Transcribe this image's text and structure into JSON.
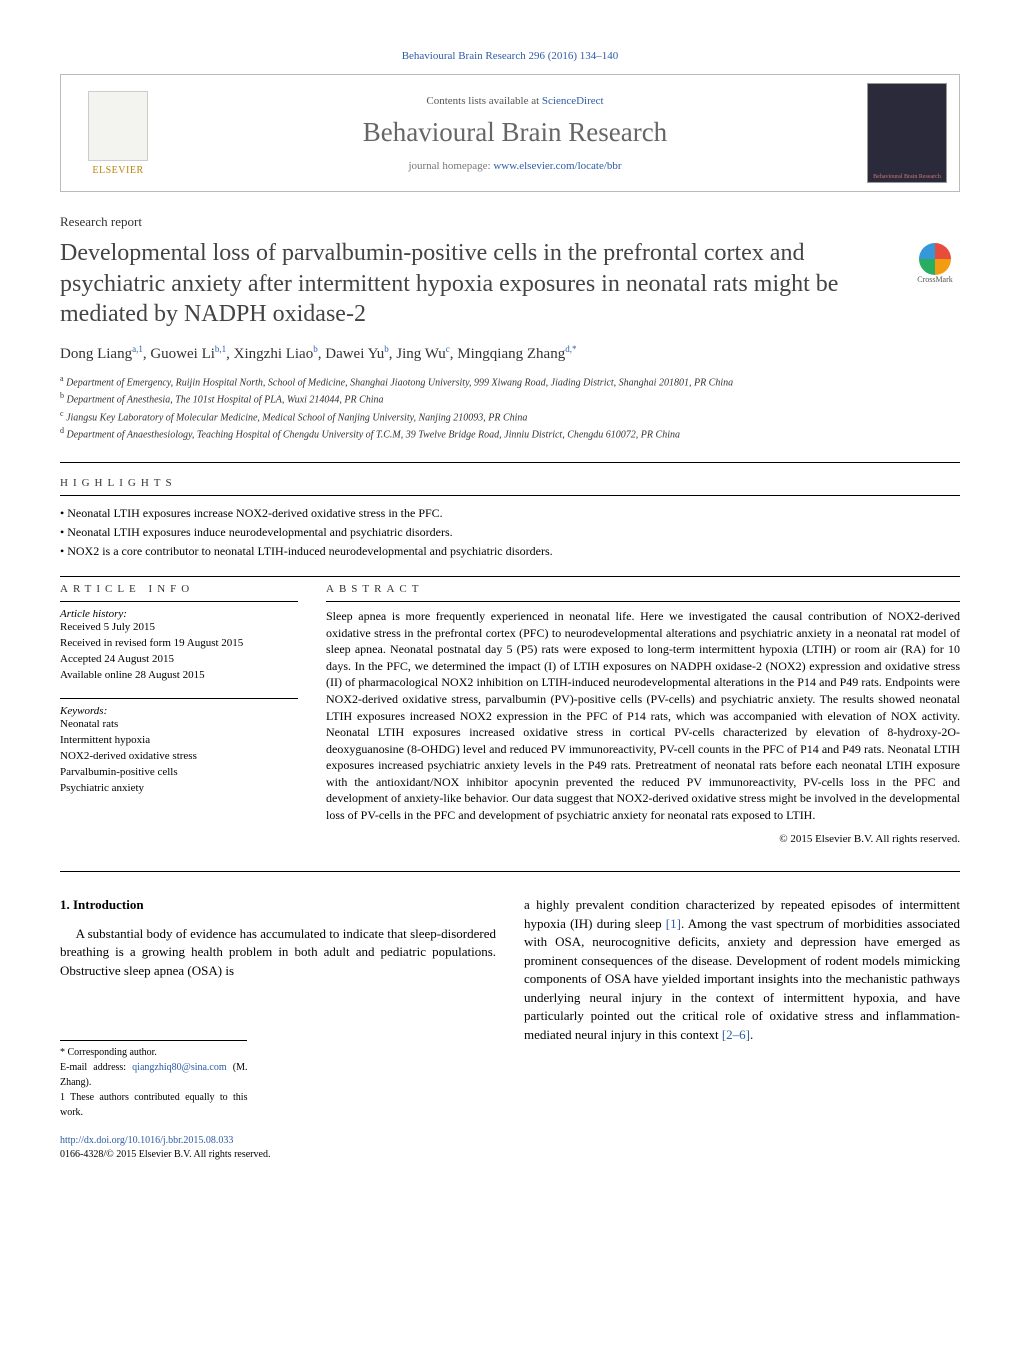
{
  "journal_ref": "Behavioural Brain Research 296 (2016) 134–140",
  "header": {
    "contents_prefix": "Contents lists available at ",
    "contents_link": "ScienceDirect",
    "journal_name": "Behavioural Brain Research",
    "homepage_prefix": "journal homepage: ",
    "homepage_link": "www.elsevier.com/locate/bbr",
    "publisher_label": "ELSEVIER",
    "cover_label": "Behavioural Brain Research"
  },
  "article_type": "Research report",
  "title": "Developmental loss of parvalbumin-positive cells in the prefrontal cortex and psychiatric anxiety after intermittent hypoxia exposures in neonatal rats might be mediated by NADPH oxidase-2",
  "crossmark_label": "CrossMark",
  "authors_html": "Dong Liang<sup>a,1</sup>, Guowei Li<sup>b,1</sup>, Xingzhi Liao<sup>b</sup>, Dawei Yu<sup>b</sup>, Jing Wu<sup>c</sup>, Mingqiang Zhang<sup>d,*</sup>",
  "affiliations": [
    {
      "sup": "a",
      "text": "Department of Emergency, Ruijin Hospital North, School of Medicine, Shanghai Jiaotong University, 999 Xiwang Road, Jiading District, Shanghai 201801, PR China"
    },
    {
      "sup": "b",
      "text": "Department of Anesthesia, The 101st Hospital of PLA, Wuxi 214044, PR China"
    },
    {
      "sup": "c",
      "text": "Jiangsu Key Laboratory of Molecular Medicine, Medical School of Nanjing University, Nanjing 210093, PR China"
    },
    {
      "sup": "d",
      "text": "Department of Anaesthesiology, Teaching Hospital of Chengdu University of T.C.M, 39 Twelve Bridge Road, Jinniu District, Chengdu 610072, PR China"
    }
  ],
  "highlights_label": "HIGHLIGHTS",
  "highlights": [
    "Neonatal LTIH exposures increase NOX2-derived oxidative stress in the PFC.",
    "Neonatal LTIH exposures induce neurodevelopmental and psychiatric disorders.",
    "NOX2 is a core contributor to neonatal LTIH-induced neurodevelopmental and psychiatric disorders."
  ],
  "article_info_label": "ARTICLE INFO",
  "abstract_label": "ABSTRACT",
  "history_label": "Article history:",
  "history": [
    "Received 5 July 2015",
    "Received in revised form 19 August 2015",
    "Accepted 24 August 2015",
    "Available online 28 August 2015"
  ],
  "keywords_label": "Keywords:",
  "keywords": [
    "Neonatal rats",
    "Intermittent hypoxia",
    "NOX2-derived oxidative stress",
    "Parvalbumin-positive cells",
    "Psychiatric anxiety"
  ],
  "abstract": "Sleep apnea is more frequently experienced in neonatal life. Here we investigated the causal contribution of NOX2-derived oxidative stress in the prefrontal cortex (PFC) to neurodevelopmental alterations and psychiatric anxiety in a neonatal rat model of sleep apnea. Neonatal postnatal day 5 (P5) rats were exposed to long-term intermittent hypoxia (LTIH) or room air (RA) for 10 days. In the PFC, we determined the impact (I) of LTIH exposures on NADPH oxidase-2 (NOX2) expression and oxidative stress (II) of pharmacological NOX2 inhibition on LTIH-induced neurodevelopmental alterations in the P14 and P49 rats. Endpoints were NOX2-derived oxidative stress, parvalbumin (PV)-positive cells (PV-cells) and psychiatric anxiety. The results showed neonatal LTIH exposures increased NOX2 expression in the PFC of P14 rats, which was accompanied with elevation of NOX activity. Neonatal LTIH exposures increased oxidative stress in cortical PV-cells characterized by elevation of 8-hydroxy-2O-deoxyguanosine (8-OHDG) level and reduced PV immunoreactivity, PV-cell counts in the PFC of P14 and P49 rats. Neonatal LTIH exposures increased psychiatric anxiety levels in the P49 rats. Pretreatment of neonatal rats before each neonatal LTIH exposure with the antioxidant/NOX inhibitor apocynin prevented the reduced PV immunoreactivity, PV-cells loss in the PFC and development of anxiety-like behavior. Our data suggest that NOX2-derived oxidative stress might be involved in the developmental loss of PV-cells in the PFC and development of psychiatric anxiety for neonatal rats exposed to LTIH.",
  "copyright": "© 2015 Elsevier B.V. All rights reserved.",
  "intro_heading": "1. Introduction",
  "intro_p1": "A substantial body of evidence has accumulated to indicate that sleep-disordered breathing is a growing health problem in both adult and pediatric populations. Obstructive sleep apnea (OSA) is",
  "intro_p2_a": "a highly prevalent condition characterized by repeated episodes of intermittent hypoxia (IH) during sleep ",
  "intro_p2_ref1": "[1]",
  "intro_p2_b": ". Among the vast spectrum of morbidities associated with OSA, neurocognitive deficits, anxiety and depression have emerged as prominent consequences of the disease. Development of rodent models mimicking components of OSA have yielded important insights into the mechanistic pathways underlying neural injury in the context of intermittent hypoxia, and have particularly pointed out the critical role of oxidative stress and inflammation-mediated neural injury in this context ",
  "intro_p2_ref2": "[2–6]",
  "intro_p2_c": ".",
  "footnotes": {
    "corr": "* Corresponding author.",
    "email_label": "E-mail address: ",
    "email": "qiangzhiq80@sina.com",
    "email_suffix": " (M. Zhang).",
    "equal": "1 These authors contributed equally to this work."
  },
  "doi_link": "http://dx.doi.org/10.1016/j.bbr.2015.08.033",
  "doi_copyright": "0166-4328/© 2015 Elsevier B.V. All rights reserved.",
  "colors": {
    "link": "#2d5ca6",
    "title_gray": "#444444",
    "journal_gray": "#666666"
  }
}
